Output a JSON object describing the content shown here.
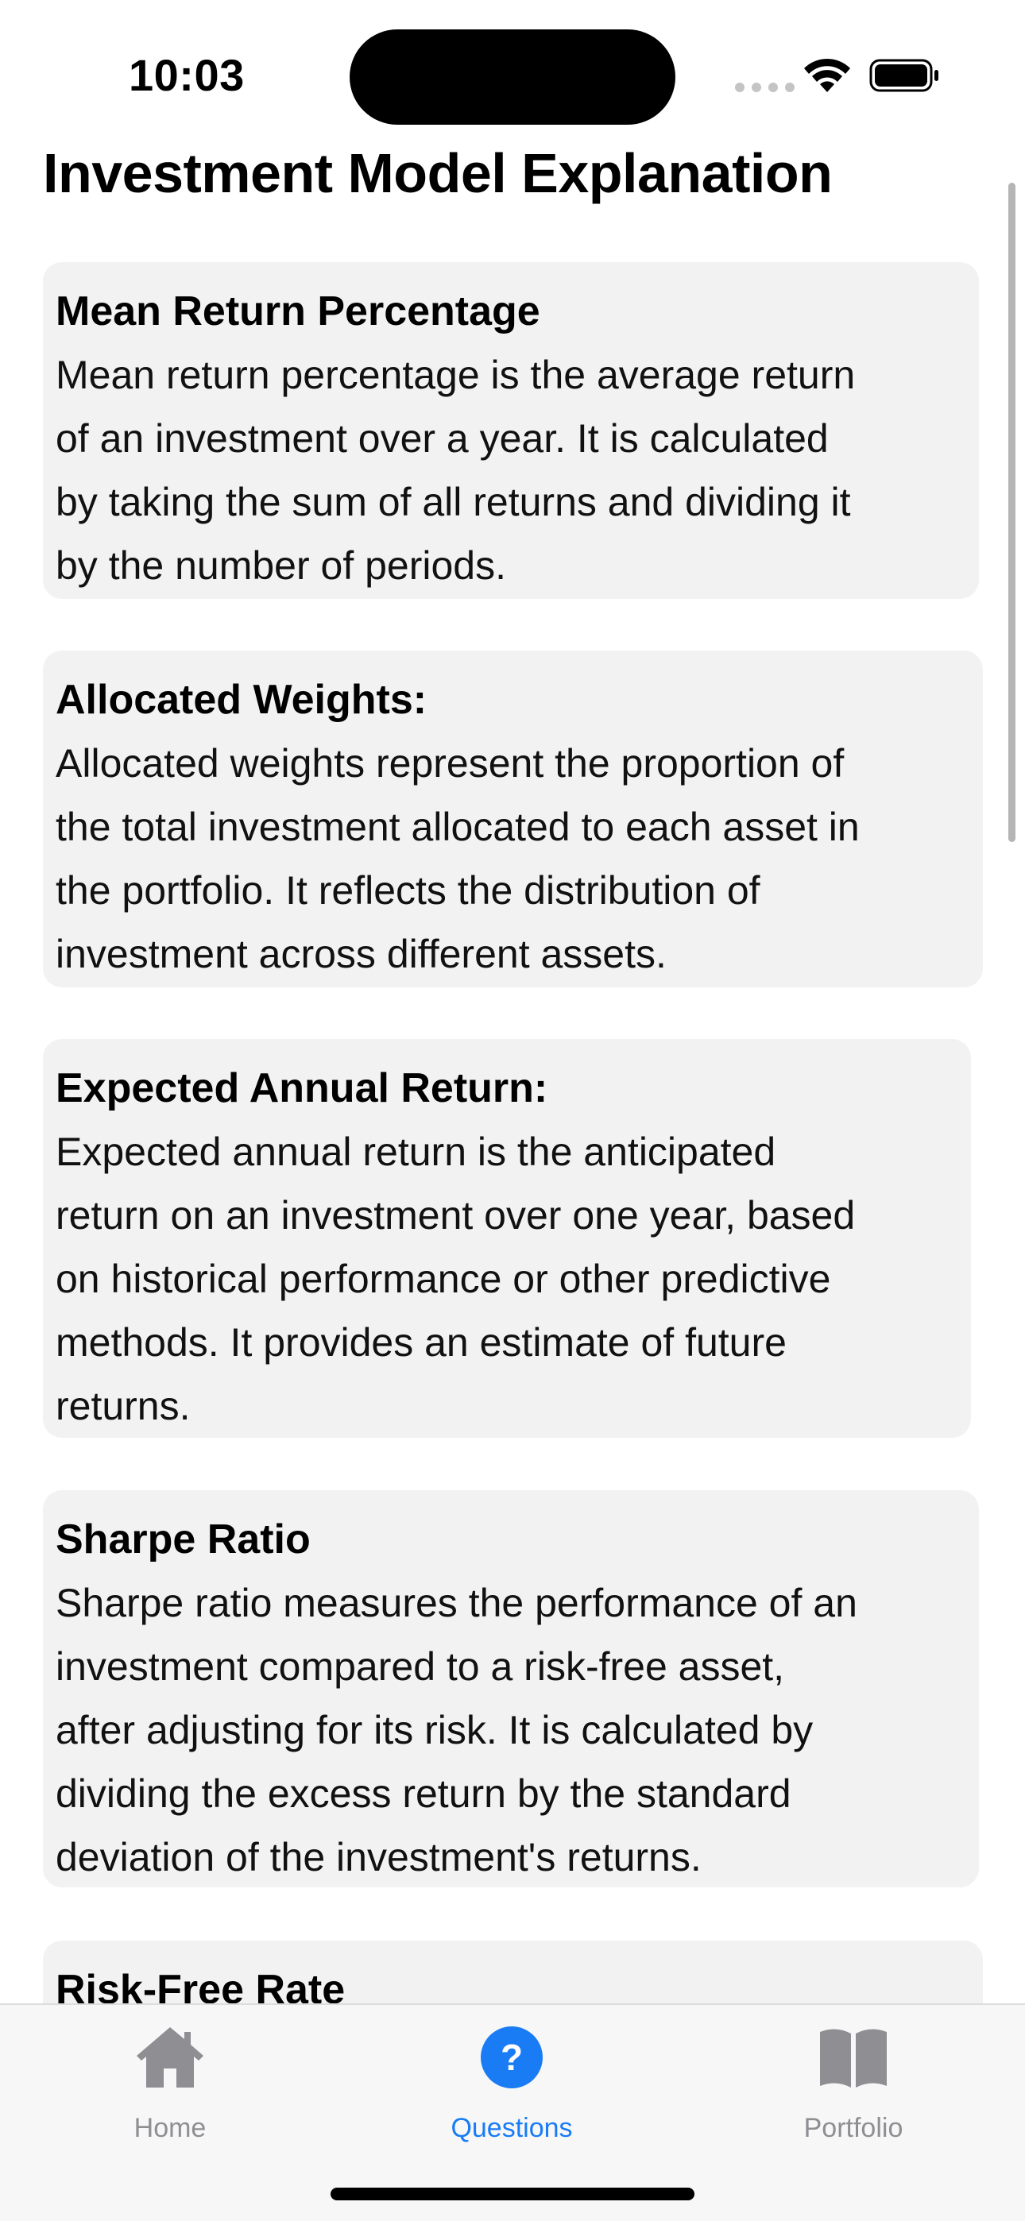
{
  "status_bar": {
    "time": "10:03"
  },
  "page": {
    "title": "Investment Model Explanation"
  },
  "cards": [
    {
      "title": "Mean Return Percentage",
      "lines": [
        "Mean return percentage is the average return",
        "of an investment over a year. It is calculated",
        "by taking the sum of all returns and dividing it",
        "by the number of periods."
      ]
    },
    {
      "title": "Allocated Weights:",
      "lines": [
        "Allocated weights represent the proportion of",
        "the total investment allocated to each asset in",
        "the portfolio. It reflects the distribution of",
        "investment across different assets."
      ]
    },
    {
      "title": "Expected Annual Return:",
      "lines": [
        "Expected annual return is the anticipated",
        "return on an investment over one year, based",
        "on historical performance or other predictive",
        "methods. It provides an estimate of future",
        "returns."
      ]
    },
    {
      "title": "Sharpe Ratio",
      "lines": [
        "Sharpe ratio measures the performance of an",
        "investment compared to a risk-free asset,",
        "after adjusting for its risk. It is calculated by",
        "dividing the excess return by the standard",
        "deviation of the investment's returns."
      ]
    },
    {
      "title": "Risk-Free Rate",
      "lines": []
    }
  ],
  "tab_bar": {
    "tabs": [
      {
        "label": "Home",
        "icon": "house-icon",
        "active": false
      },
      {
        "label": "Questions",
        "icon": "question-circle-icon",
        "active": true
      },
      {
        "label": "Portfolio",
        "icon": "book-icon",
        "active": false
      }
    ],
    "active_color": "#1a7cf5",
    "inactive_color": "#8e8e93"
  }
}
